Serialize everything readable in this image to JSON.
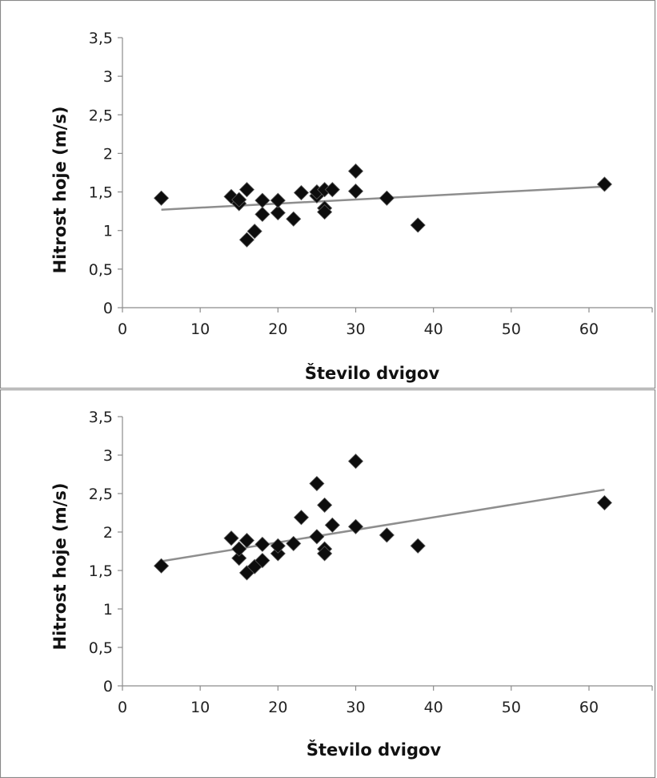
{
  "chart_data": [
    {
      "type": "scatter",
      "xlabel": "Število dvigov",
      "ylabel": "Hitrost hoje (m/s)",
      "xlim": [
        0,
        70
      ],
      "ylim": [
        0,
        3.5
      ],
      "x_ticks": [
        "0",
        "10",
        "20",
        "30",
        "40",
        "50",
        "60"
      ],
      "y_ticks": [
        "0",
        "0,5",
        "1",
        "1,5",
        "2",
        "2,5",
        "3",
        "3,5"
      ],
      "grid": false,
      "legend": "none",
      "marker_color": "#000000",
      "trendline_color": "#8e8e8e",
      "trendline": {
        "x": [
          5,
          62
        ],
        "y": [
          1.27,
          1.57
        ]
      },
      "points": [
        {
          "x": 5,
          "y": 1.42
        },
        {
          "x": 14,
          "y": 1.44
        },
        {
          "x": 15,
          "y": 1.35
        },
        {
          "x": 15,
          "y": 1.4
        },
        {
          "x": 16,
          "y": 1.53
        },
        {
          "x": 16,
          "y": 0.88
        },
        {
          "x": 17,
          "y": 0.99
        },
        {
          "x": 18,
          "y": 1.21
        },
        {
          "x": 18,
          "y": 1.39
        },
        {
          "x": 20,
          "y": 1.23
        },
        {
          "x": 20,
          "y": 1.39
        },
        {
          "x": 22,
          "y": 1.15
        },
        {
          "x": 23,
          "y": 1.49
        },
        {
          "x": 25,
          "y": 1.45
        },
        {
          "x": 25,
          "y": 1.5
        },
        {
          "x": 26,
          "y": 1.53
        },
        {
          "x": 26,
          "y": 1.29
        },
        {
          "x": 26,
          "y": 1.24
        },
        {
          "x": 27,
          "y": 1.53
        },
        {
          "x": 30,
          "y": 1.77
        },
        {
          "x": 30,
          "y": 1.51
        },
        {
          "x": 34,
          "y": 1.42
        },
        {
          "x": 38,
          "y": 1.07
        },
        {
          "x": 62,
          "y": 1.6
        }
      ]
    },
    {
      "type": "scatter",
      "xlabel": "Število dvigov",
      "ylabel": "Hitrost hoje (m/s)",
      "xlim": [
        0,
        70
      ],
      "ylim": [
        0,
        3.5
      ],
      "x_ticks": [
        "0",
        "10",
        "20",
        "30",
        "40",
        "50",
        "60"
      ],
      "y_ticks": [
        "0",
        "0,5",
        "1",
        "1,5",
        "2",
        "2,5",
        "3",
        "3,5"
      ],
      "grid": false,
      "legend": "none",
      "marker_color": "#000000",
      "trendline_color": "#8e8e8e",
      "trendline": {
        "x": [
          5,
          62
        ],
        "y": [
          1.62,
          2.55
        ]
      },
      "points": [
        {
          "x": 5,
          "y": 1.56
        },
        {
          "x": 14,
          "y": 1.92
        },
        {
          "x": 15,
          "y": 1.66
        },
        {
          "x": 15,
          "y": 1.78
        },
        {
          "x": 16,
          "y": 1.89
        },
        {
          "x": 16,
          "y": 1.47
        },
        {
          "x": 17,
          "y": 1.55
        },
        {
          "x": 18,
          "y": 1.63
        },
        {
          "x": 18,
          "y": 1.84
        },
        {
          "x": 20,
          "y": 1.72
        },
        {
          "x": 20,
          "y": 1.82
        },
        {
          "x": 22,
          "y": 1.85
        },
        {
          "x": 23,
          "y": 2.19
        },
        {
          "x": 25,
          "y": 2.63
        },
        {
          "x": 25,
          "y": 1.94
        },
        {
          "x": 26,
          "y": 2.35
        },
        {
          "x": 26,
          "y": 1.78
        },
        {
          "x": 26,
          "y": 1.72
        },
        {
          "x": 27,
          "y": 2.09
        },
        {
          "x": 30,
          "y": 2.92
        },
        {
          "x": 30,
          "y": 2.07
        },
        {
          "x": 34,
          "y": 1.96
        },
        {
          "x": 38,
          "y": 1.82
        },
        {
          "x": 62,
          "y": 2.38
        }
      ]
    }
  ]
}
